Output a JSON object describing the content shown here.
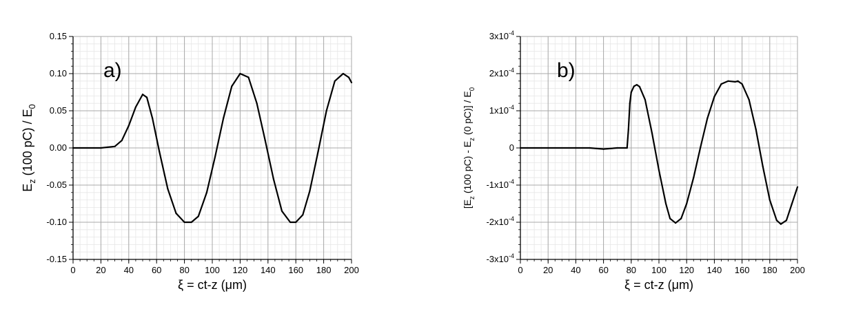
{
  "chart_data": [
    {
      "type": "line",
      "panel_label": "a)",
      "xlabel": "ξ = ct-z (μm)",
      "ylabel_parts": [
        "E",
        "z",
        " (100 pC)  /  E",
        "0"
      ],
      "xlim": [
        0,
        200
      ],
      "ylim": [
        -0.15,
        0.15
      ],
      "x_ticks": [
        0,
        20,
        40,
        60,
        80,
        100,
        120,
        140,
        160,
        180,
        200
      ],
      "x_tick_labels": [
        "0",
        "20",
        "40",
        "60",
        "80",
        "100",
        "120",
        "140",
        "160",
        "180",
        "200"
      ],
      "y_ticks": [
        -0.15,
        -0.1,
        -0.05,
        0.0,
        0.05,
        0.1,
        0.15
      ],
      "y_tick_labels": [
        "-0.15",
        "-0.10",
        "-0.05",
        "0.00",
        "0.05",
        "0.10",
        "0.15"
      ],
      "grid": true,
      "series": [
        {
          "x": [
            0,
            20,
            30,
            35,
            40,
            45,
            50,
            53,
            57,
            62,
            68,
            74,
            80,
            85,
            90,
            96,
            102,
            108,
            114,
            120,
            126,
            132,
            138,
            144,
            150,
            156,
            160,
            165,
            170,
            176,
            182,
            188,
            194,
            198,
            200
          ],
          "y": [
            0.0,
            0.0,
            0.002,
            0.01,
            0.03,
            0.055,
            0.072,
            0.068,
            0.04,
            -0.005,
            -0.055,
            -0.088,
            -0.1,
            -0.1,
            -0.092,
            -0.06,
            -0.012,
            0.04,
            0.083,
            0.1,
            0.095,
            0.06,
            0.01,
            -0.042,
            -0.085,
            -0.1,
            -0.1,
            -0.09,
            -0.058,
            -0.005,
            0.05,
            0.09,
            0.1,
            0.095,
            0.088
          ]
        }
      ]
    },
    {
      "type": "line",
      "panel_label": "b)",
      "xlabel": "ξ = ct-z (μm)",
      "ylabel_parts": [
        "[E",
        "z",
        " (100 pC) - E",
        "z",
        " (0 pC)] / E",
        "0"
      ],
      "xlim": [
        0,
        200
      ],
      "ylim": [
        -0.0003,
        0.0003
      ],
      "x_ticks": [
        0,
        20,
        40,
        60,
        80,
        100,
        120,
        140,
        160,
        180,
        200
      ],
      "x_tick_labels": [
        "0",
        "20",
        "40",
        "60",
        "80",
        "100",
        "120",
        "140",
        "160",
        "180",
        "200"
      ],
      "y_ticks": [
        -0.0003,
        -0.0002,
        -0.0001,
        0,
        0.0001,
        0.0002,
        0.0003
      ],
      "y_tick_labels": [
        [
          "-3x10",
          "-4"
        ],
        [
          "-2x10",
          "-4"
        ],
        [
          "-1x10",
          "-4"
        ],
        [
          "0",
          ""
        ],
        [
          "1x10",
          "-4"
        ],
        [
          "2x10",
          "-4"
        ],
        [
          "3x10",
          "-4"
        ]
      ],
      "grid": true,
      "series": [
        {
          "x": [
            0,
            20,
            40,
            50,
            60,
            70,
            77,
            78,
            79,
            80,
            82,
            84,
            86,
            90,
            95,
            100,
            105,
            108,
            112,
            116,
            120,
            125,
            130,
            135,
            140,
            145,
            150,
            155,
            157,
            160,
            165,
            170,
            175,
            180,
            185,
            188,
            192,
            196,
            200
          ],
          "y": [
            0,
            0,
            0,
            0,
            -3e-06,
            0,
            0,
            5e-05,
            0.00012,
            0.00015,
            0.000166,
            0.00017,
            0.000165,
            0.00013,
            4e-05,
            -6e-05,
            -0.00015,
            -0.00019,
            -0.000202,
            -0.00019,
            -0.00015,
            -8e-05,
            2e-06,
            8e-05,
            0.000138,
            0.000172,
            0.00018,
            0.000178,
            0.00018,
            0.000172,
            0.00013,
            5e-05,
            -5e-05,
            -0.00014,
            -0.000195,
            -0.000205,
            -0.000195,
            -0.00015,
            -0.000105
          ]
        }
      ]
    }
  ]
}
